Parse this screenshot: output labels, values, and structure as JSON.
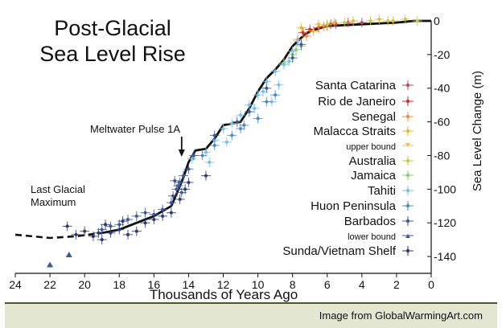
{
  "chart_data": {
    "type": "scatter",
    "title": "Post-Glacial Sea Level Rise",
    "xlabel": "Thousands of Years Ago",
    "ylabel": "Sea Level Change (m)",
    "xlim": [
      24,
      0
    ],
    "ylim": [
      -150,
      0
    ],
    "x_ticks": [
      "24",
      "22",
      "20",
      "18",
      "16",
      "14",
      "12",
      "10",
      "8",
      "6",
      "4",
      "2",
      "0"
    ],
    "y_ticks": [
      "0",
      "-20",
      "-40",
      "-60",
      "-80",
      "-100",
      "-120",
      "-140"
    ],
    "grid": false,
    "legend_position": "right",
    "annotations": [
      {
        "text": "Meltwater Pulse 1A",
        "x": 14.4,
        "y": -78
      },
      {
        "text": "Last Glacial Maximum",
        "x": 22.0,
        "y": -105
      }
    ],
    "legend": [
      {
        "label": "Santa Catarina",
        "color": "#b4505a",
        "marker": "cross"
      },
      {
        "label": "Rio de Janeiro",
        "color": "#cc3030",
        "marker": "cross"
      },
      {
        "label": "Senegal",
        "color": "#e8904a",
        "marker": "cross"
      },
      {
        "label": "Malacca Straits",
        "color": "#e8b830",
        "marker": "cross"
      },
      {
        "label": "upper bound",
        "color": "#e8c060",
        "marker": "arrow-down"
      },
      {
        "label": "Australia",
        "color": "#c8c840",
        "marker": "cross"
      },
      {
        "label": "Jamaica",
        "color": "#8ad070",
        "marker": "cross"
      },
      {
        "label": "Tahiti",
        "color": "#7ac0e8",
        "marker": "cross"
      },
      {
        "label": "Huon Peninsula",
        "color": "#4a8ac8",
        "marker": "cross"
      },
      {
        "label": "Barbados",
        "color": "#3a5a9a",
        "marker": "cross"
      },
      {
        "label": "lower bound",
        "color": "#3a5a9a",
        "marker": "arrow-up"
      },
      {
        "label": "Sunda/Vietnam Shelf",
        "color": "#2a3a7a",
        "marker": "cross"
      }
    ],
    "trend_line": [
      {
        "x": 19.0,
        "y": -126
      },
      {
        "x": 18.0,
        "y": -124
      },
      {
        "x": 17.0,
        "y": -120
      },
      {
        "x": 16.0,
        "y": -116
      },
      {
        "x": 15.0,
        "y": -110
      },
      {
        "x": 14.7,
        "y": -103
      },
      {
        "x": 14.3,
        "y": -93
      },
      {
        "x": 14.0,
        "y": -84
      },
      {
        "x": 13.6,
        "y": -77
      },
      {
        "x": 13.0,
        "y": -76
      },
      {
        "x": 12.5,
        "y": -70
      },
      {
        "x": 12.0,
        "y": -62
      },
      {
        "x": 11.0,
        "y": -60
      },
      {
        "x": 10.5,
        "y": -52
      },
      {
        "x": 10.0,
        "y": -42
      },
      {
        "x": 9.5,
        "y": -34
      },
      {
        "x": 9.0,
        "y": -29
      },
      {
        "x": 8.5,
        "y": -23
      },
      {
        "x": 8.0,
        "y": -15
      },
      {
        "x": 7.5,
        "y": -10
      },
      {
        "x": 7.0,
        "y": -6
      },
      {
        "x": 6.0,
        "y": -3
      },
      {
        "x": 4.0,
        "y": -2
      },
      {
        "x": 2.0,
        "y": -1
      },
      {
        "x": 1.0,
        "y": 0
      },
      {
        "x": 0.0,
        "y": 0
      }
    ],
    "trend_line_extrapolated": [
      {
        "x": 24.0,
        "y": -127
      },
      {
        "x": 22.0,
        "y": -129
      },
      {
        "x": 20.5,
        "y": -128
      },
      {
        "x": 19.0,
        "y": -126
      }
    ],
    "series": [
      {
        "name": "Santa Catarina",
        "color": "#b4505a",
        "points": [
          {
            "x": 5.5,
            "y": -2
          },
          {
            "x": 4.8,
            "y": -1
          },
          {
            "x": 6.0,
            "y": -3
          },
          {
            "x": 4.0,
            "y": -1
          }
        ]
      },
      {
        "name": "Rio de Janeiro",
        "color": "#cc3030",
        "points": [
          {
            "x": 7.0,
            "y": -5
          },
          {
            "x": 6.5,
            "y": -4
          },
          {
            "x": 7.4,
            "y": -7
          },
          {
            "x": 5.8,
            "y": -2
          }
        ]
      },
      {
        "name": "Senegal",
        "color": "#e8904a",
        "points": [
          {
            "x": 7.2,
            "y": -9
          },
          {
            "x": 6.8,
            "y": -6
          },
          {
            "x": 7.7,
            "y": -11
          },
          {
            "x": 6.2,
            "y": -3
          }
        ]
      },
      {
        "name": "Malacca Straits",
        "color": "#e8b830",
        "points": [
          {
            "x": 6.5,
            "y": -2
          },
          {
            "x": 5.6,
            "y": -1
          },
          {
            "x": 7.5,
            "y": -4
          },
          {
            "x": 4.5,
            "y": 0
          },
          {
            "x": 3.0,
            "y": 1
          },
          {
            "x": 2.2,
            "y": 0
          },
          {
            "x": 6.8,
            "y": -6
          }
        ]
      },
      {
        "name": "Australia",
        "color": "#c8c840",
        "points": [
          {
            "x": 6.0,
            "y": -2
          },
          {
            "x": 5.0,
            "y": -1
          },
          {
            "x": 3.5,
            "y": 0
          },
          {
            "x": 2.5,
            "y": 0
          },
          {
            "x": 1.5,
            "y": 1
          },
          {
            "x": 0.8,
            "y": 0
          }
        ]
      },
      {
        "name": "Jamaica",
        "color": "#8ad070",
        "points": [
          {
            "x": 8.0,
            "y": -20
          },
          {
            "x": 7.5,
            "y": -15
          },
          {
            "x": 8.5,
            "y": -25
          },
          {
            "x": 7.8,
            "y": -17
          }
        ]
      },
      {
        "name": "Tahiti",
        "color": "#7ac0e8",
        "points": [
          {
            "x": 13.8,
            "y": -82
          },
          {
            "x": 13.0,
            "y": -78
          },
          {
            "x": 12.5,
            "y": -71
          },
          {
            "x": 12.0,
            "y": -64
          },
          {
            "x": 11.5,
            "y": -61
          },
          {
            "x": 11.0,
            "y": -56
          },
          {
            "x": 10.5,
            "y": -50
          },
          {
            "x": 10.0,
            "y": -44
          },
          {
            "x": 9.5,
            "y": -36
          },
          {
            "x": 9.0,
            "y": -30
          },
          {
            "x": 8.8,
            "y": -38
          },
          {
            "x": 8.5,
            "y": -26
          },
          {
            "x": 8.2,
            "y": -24
          },
          {
            "x": 8.0,
            "y": -18
          },
          {
            "x": 9.7,
            "y": -42
          },
          {
            "x": 10.2,
            "y": -52
          },
          {
            "x": 11.8,
            "y": -72
          },
          {
            "x": 12.8,
            "y": -84
          },
          {
            "x": 7.7,
            "y": -12
          },
          {
            "x": 9.2,
            "y": -48
          }
        ]
      },
      {
        "name": "Huon Peninsula",
        "color": "#4a8ac8",
        "points": [
          {
            "x": 11.5,
            "y": -68
          },
          {
            "x": 10.8,
            "y": -62
          },
          {
            "x": 10.0,
            "y": -58
          },
          {
            "x": 9.5,
            "y": -48
          },
          {
            "x": 12.5,
            "y": -74
          },
          {
            "x": 13.2,
            "y": -80
          },
          {
            "x": 11.0,
            "y": -64
          },
          {
            "x": 9.0,
            "y": -44
          }
        ]
      },
      {
        "name": "Barbados",
        "color": "#3a5a9a",
        "points": [
          {
            "x": 19.0,
            "y": -124
          },
          {
            "x": 18.5,
            "y": -122
          },
          {
            "x": 18.0,
            "y": -121
          },
          {
            "x": 17.5,
            "y": -118
          },
          {
            "x": 17.0,
            "y": -116
          },
          {
            "x": 16.5,
            "y": -114
          },
          {
            "x": 16.0,
            "y": -115
          },
          {
            "x": 15.5,
            "y": -112
          },
          {
            "x": 15.0,
            "y": -108
          },
          {
            "x": 14.7,
            "y": -100
          },
          {
            "x": 14.5,
            "y": -96
          },
          {
            "x": 14.3,
            "y": -92
          },
          {
            "x": 14.0,
            "y": -88
          },
          {
            "x": 13.7,
            "y": -80
          },
          {
            "x": 12.5,
            "y": -68
          },
          {
            "x": 11.2,
            "y": -60
          },
          {
            "x": 10.5,
            "y": -54
          },
          {
            "x": 9.5,
            "y": -40
          },
          {
            "x": 8.0,
            "y": -22
          },
          {
            "x": 7.5,
            "y": -14
          },
          {
            "x": 14.9,
            "y": -104
          },
          {
            "x": 14.6,
            "y": -98
          },
          {
            "x": 14.4,
            "y": -102
          },
          {
            "x": 14.8,
            "y": -95
          }
        ]
      },
      {
        "name": "Sunda/Vietnam Shelf",
        "color": "#2a3a7a",
        "points": [
          {
            "x": 21.0,
            "y": -122
          },
          {
            "x": 20.0,
            "y": -125
          },
          {
            "x": 19.5,
            "y": -128
          },
          {
            "x": 19.0,
            "y": -130
          },
          {
            "x": 18.5,
            "y": -126
          },
          {
            "x": 18.0,
            "y": -124
          },
          {
            "x": 17.5,
            "y": -127
          },
          {
            "x": 17.0,
            "y": -125
          },
          {
            "x": 16.5,
            "y": -120
          },
          {
            "x": 16.0,
            "y": -118
          },
          {
            "x": 15.5,
            "y": -116
          },
          {
            "x": 15.0,
            "y": -114
          },
          {
            "x": 14.5,
            "y": -106
          },
          {
            "x": 14.2,
            "y": -100
          },
          {
            "x": 14.0,
            "y": -96
          },
          {
            "x": 13.0,
            "y": -92
          },
          {
            "x": 18.8,
            "y": -121
          },
          {
            "x": 17.8,
            "y": -119
          },
          {
            "x": 20.5,
            "y": -127
          },
          {
            "x": 19.2,
            "y": -126
          }
        ]
      },
      {
        "name": "lower bound",
        "color": "#3a5a9a",
        "marker": "arrow-up",
        "points": [
          {
            "x": 22.0,
            "y": -145
          },
          {
            "x": 20.9,
            "y": -139
          }
        ]
      }
    ]
  },
  "credit": "Image from GlobalWarmingArt.com"
}
